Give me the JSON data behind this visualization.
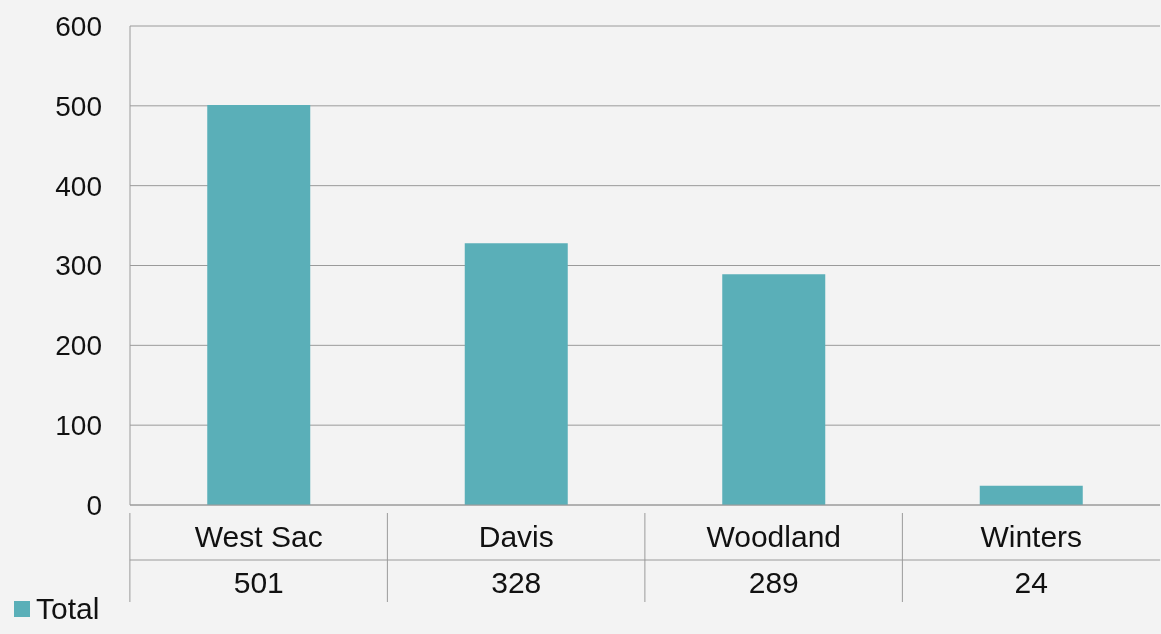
{
  "chart_data": {
    "type": "bar",
    "categories": [
      "West Sac",
      "Davis",
      "Woodland",
      "Winters"
    ],
    "series": [
      {
        "name": "Total",
        "color": "#5aafb8",
        "values": [
          501,
          328,
          289,
          24
        ]
      }
    ],
    "ylim": [
      0,
      600
    ],
    "yticks": [
      0,
      100,
      200,
      300,
      400,
      500,
      600
    ],
    "grid": "y",
    "data_labels": true,
    "legend": "bottom left"
  }
}
